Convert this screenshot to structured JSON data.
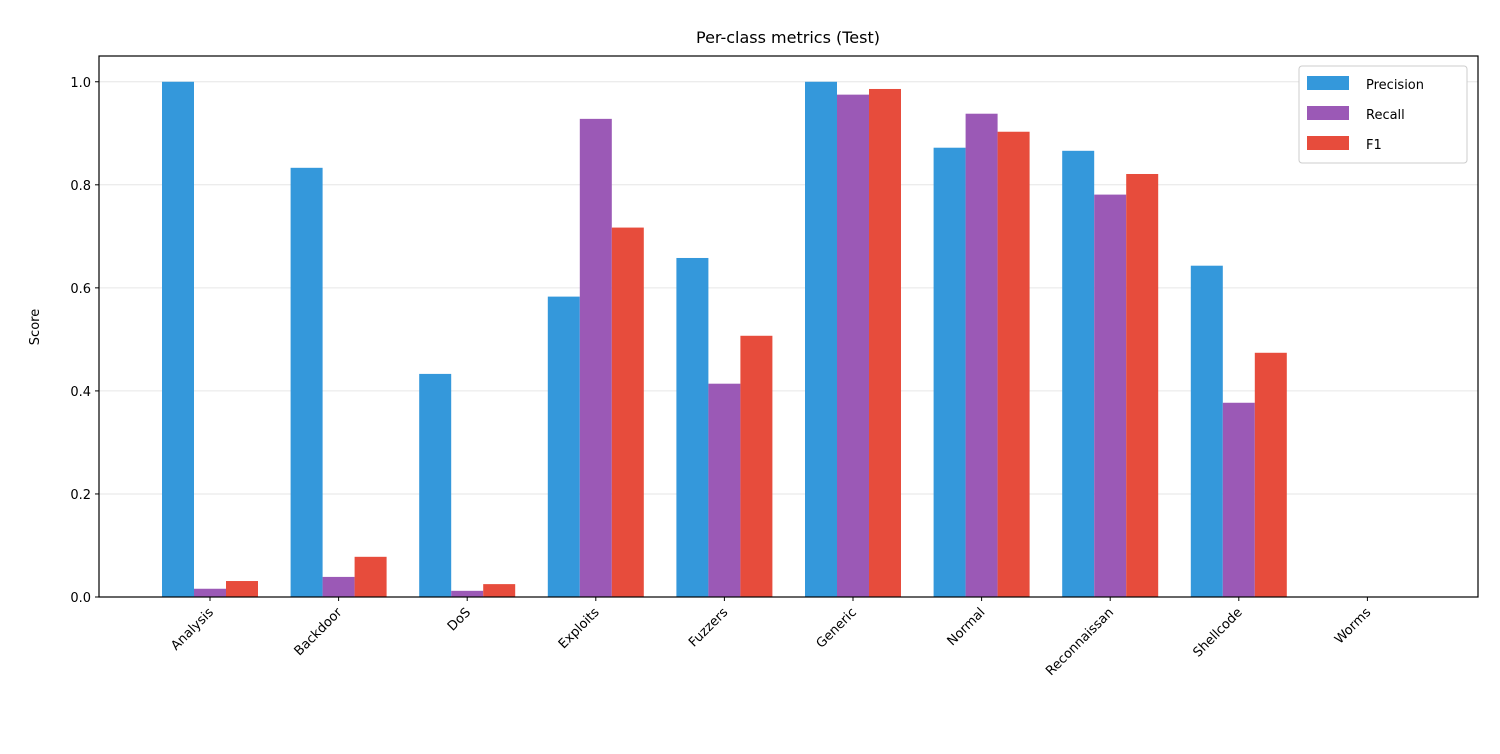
{
  "chart_data": {
    "type": "bar",
    "title": "Per-class metrics (Test)",
    "xlabel": "",
    "ylabel": "Score",
    "ylim": [
      0,
      1.05
    ],
    "yticks": [
      "0.0",
      "0.2",
      "0.4",
      "0.6",
      "0.8",
      "1.0"
    ],
    "grid": "horizontal",
    "legend_position": "top-right",
    "categories": [
      "Analysis",
      "Backdoor",
      "DoS",
      "Exploits",
      "Fuzzers",
      "Generic",
      "Normal",
      "Reconnaissan",
      "Shellcode",
      "Worms"
    ],
    "series": [
      {
        "name": "Precision",
        "color": "#3498db",
        "values": [
          1.0,
          0.833,
          0.433,
          0.583,
          0.658,
          1.0,
          0.872,
          0.866,
          0.643,
          0.0
        ]
      },
      {
        "name": "Recall",
        "color": "#9b59b6",
        "values": [
          0.016,
          0.039,
          0.012,
          0.928,
          0.414,
          0.975,
          0.938,
          0.781,
          0.377,
          0.0
        ]
      },
      {
        "name": "F1",
        "color": "#e74c3c",
        "values": [
          0.031,
          0.078,
          0.025,
          0.717,
          0.507,
          0.986,
          0.903,
          0.821,
          0.474,
          0.0
        ]
      }
    ]
  }
}
